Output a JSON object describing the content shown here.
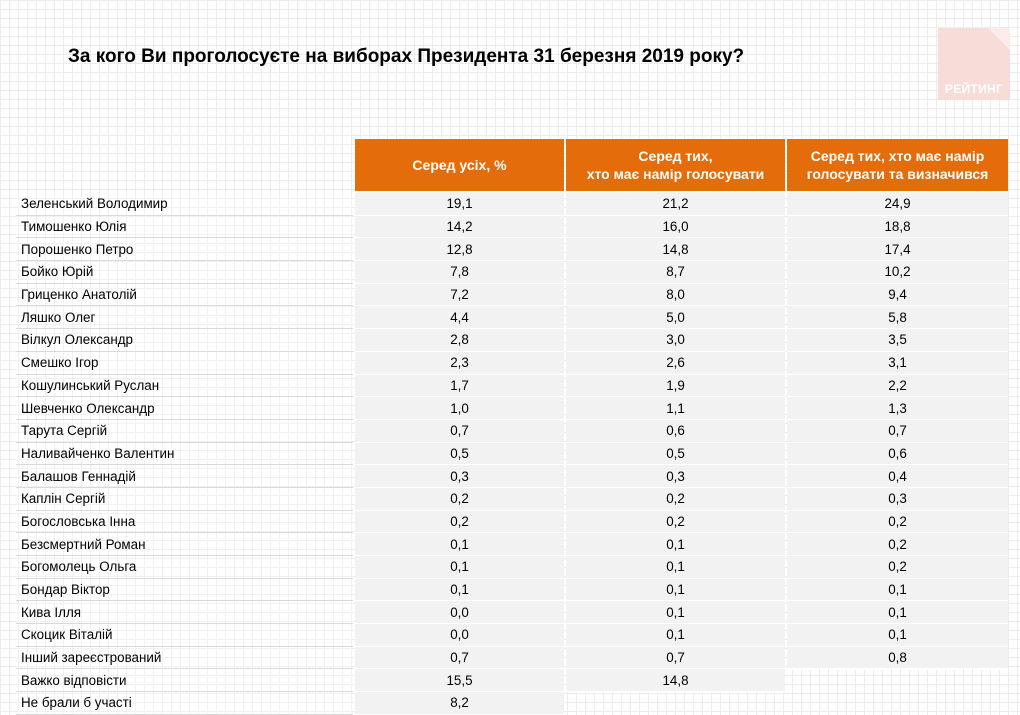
{
  "title": "За кого Ви проголосуєте на виборах Президента 31 березня 2019 року?",
  "logo": {
    "text": "РЕЙТИНГ",
    "color": "#f8dcd8"
  },
  "accent_color": "#e46c0a",
  "table": {
    "headers": [
      "Серед усіх, %",
      "Серед тих,\nхто має намір голосувати",
      "Серед тих, хто має намір\nголосувати та визначився"
    ],
    "rows": [
      {
        "name": "Зеленський Володимир",
        "values": [
          "19,1",
          "21,2",
          "24,9"
        ]
      },
      {
        "name": "Тимошенко Юлія",
        "values": [
          "14,2",
          "16,0",
          "18,8"
        ]
      },
      {
        "name": "Порошенко Петро",
        "values": [
          "12,8",
          "14,8",
          "17,4"
        ]
      },
      {
        "name": "Бойко Юрій",
        "values": [
          "7,8",
          "8,7",
          "10,2"
        ]
      },
      {
        "name": "Гриценко Анатолій",
        "values": [
          "7,2",
          "8,0",
          "9,4"
        ]
      },
      {
        "name": "Ляшко Олег",
        "values": [
          "4,4",
          "5,0",
          "5,8"
        ]
      },
      {
        "name": "Вілкул Олександр",
        "values": [
          "2,8",
          "3,0",
          "3,5"
        ]
      },
      {
        "name": "Смешко Ігор",
        "values": [
          "2,3",
          "2,6",
          "3,1"
        ]
      },
      {
        "name": "Кошулинський Руслан",
        "values": [
          "1,7",
          "1,9",
          "2,2"
        ]
      },
      {
        "name": "Шевченко Олександр",
        "values": [
          "1,0",
          "1,1",
          "1,3"
        ]
      },
      {
        "name": "Тарута Сергій",
        "values": [
          "0,7",
          "0,6",
          "0,7"
        ]
      },
      {
        "name": "Наливайченко Валентин",
        "values": [
          "0,5",
          "0,5",
          "0,6"
        ]
      },
      {
        "name": "Балашов Геннадій",
        "values": [
          "0,3",
          "0,3",
          "0,4"
        ]
      },
      {
        "name": "Каплін Сергій",
        "values": [
          "0,2",
          "0,2",
          "0,3"
        ]
      },
      {
        "name": "Богословська Інна",
        "values": [
          "0,2",
          "0,2",
          "0,2"
        ]
      },
      {
        "name": "Безсмертний Роман",
        "values": [
          "0,1",
          "0,1",
          "0,2"
        ]
      },
      {
        "name": "Богомолець Ольга",
        "values": [
          "0,1",
          "0,1",
          "0,2"
        ]
      },
      {
        "name": "Бондар Віктор",
        "values": [
          "0,1",
          "0,1",
          "0,1"
        ]
      },
      {
        "name": "Кива Ілля",
        "values": [
          "0,0",
          "0,1",
          "0,1"
        ]
      },
      {
        "name": "Скоцик Віталій",
        "values": [
          "0,0",
          "0,1",
          "0,1"
        ]
      },
      {
        "name": "Інший зареєстрований",
        "values": [
          "0,7",
          "0,7",
          "0,8"
        ]
      },
      {
        "name": "Важко відповісти",
        "values": [
          "15,5",
          "14,8",
          null
        ]
      },
      {
        "name": "Не брали б участі",
        "values": [
          "8,2",
          null,
          null
        ]
      }
    ]
  }
}
